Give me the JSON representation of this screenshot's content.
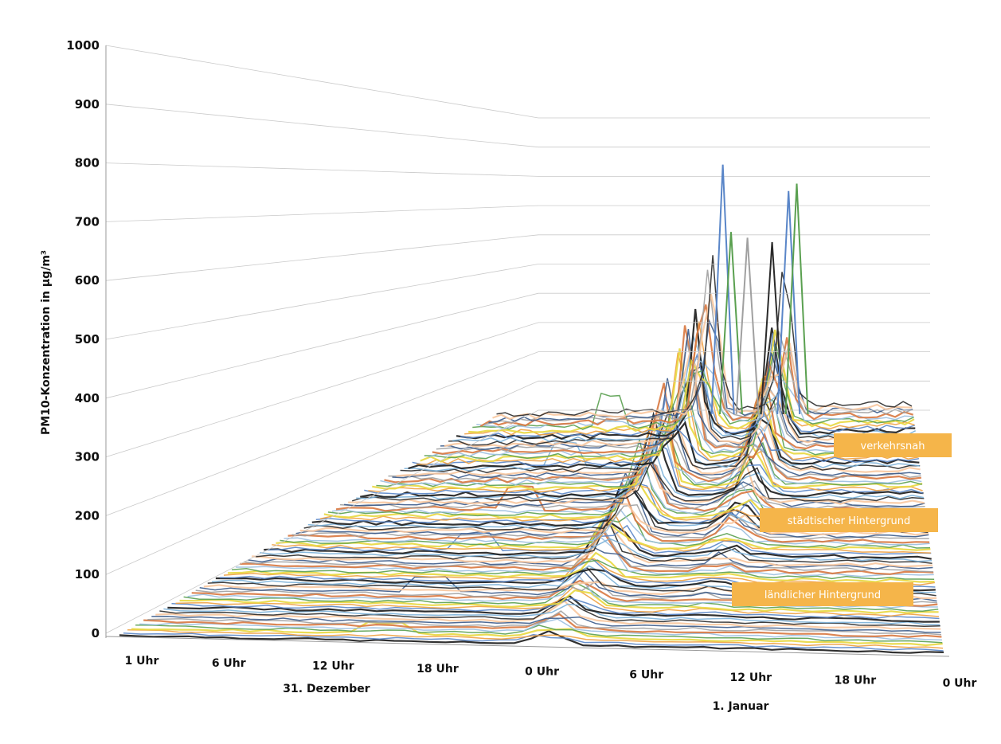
{
  "chart_data": {
    "type": "line",
    "title": "",
    "ylabel": "PM10-Konzentration in µg/m³",
    "ylim": [
      0,
      1000
    ],
    "yticks": [
      0,
      100,
      200,
      300,
      400,
      500,
      600,
      700,
      800,
      900,
      1000
    ],
    "x_hours": [
      1,
      6,
      12,
      18,
      24,
      30,
      36,
      42,
      48
    ],
    "x_tick_labels": [
      "1 Uhr",
      "6 Uhr",
      "12 Uhr",
      "18 Uhr",
      "0 Uhr",
      "6 Uhr",
      "12 Uhr",
      "18 Uhr",
      "0 Uhr"
    ],
    "day_labels": [
      "31. Dezember",
      "1. Januar"
    ],
    "midnight_label_color": "#e8a060",
    "grid": true,
    "region_labels": [
      "verkehrsnah",
      "städtischer Hintergrund",
      "ländlicher Hintergrund"
    ],
    "region_label_color": "#f5b54a",
    "series_colors": [
      "#1a1a1a",
      "#5a86c8",
      "#f0a040",
      "#e8d840",
      "#5aa050",
      "#9bbfe0",
      "#d87840",
      "#a0a0a0",
      "#3a5a8a",
      "#f8c8a0",
      "#2a2a2a",
      "#7ab0d8"
    ],
    "peaks": [
      {
        "hour": 25,
        "value": 840
      },
      {
        "hour": 26,
        "value": 610
      },
      {
        "hour": 28,
        "value": 590
      },
      {
        "hour": 31,
        "value": 575
      },
      {
        "hour": 33,
        "value": 750
      },
      {
        "hour": 34,
        "value": 775
      }
    ]
  }
}
